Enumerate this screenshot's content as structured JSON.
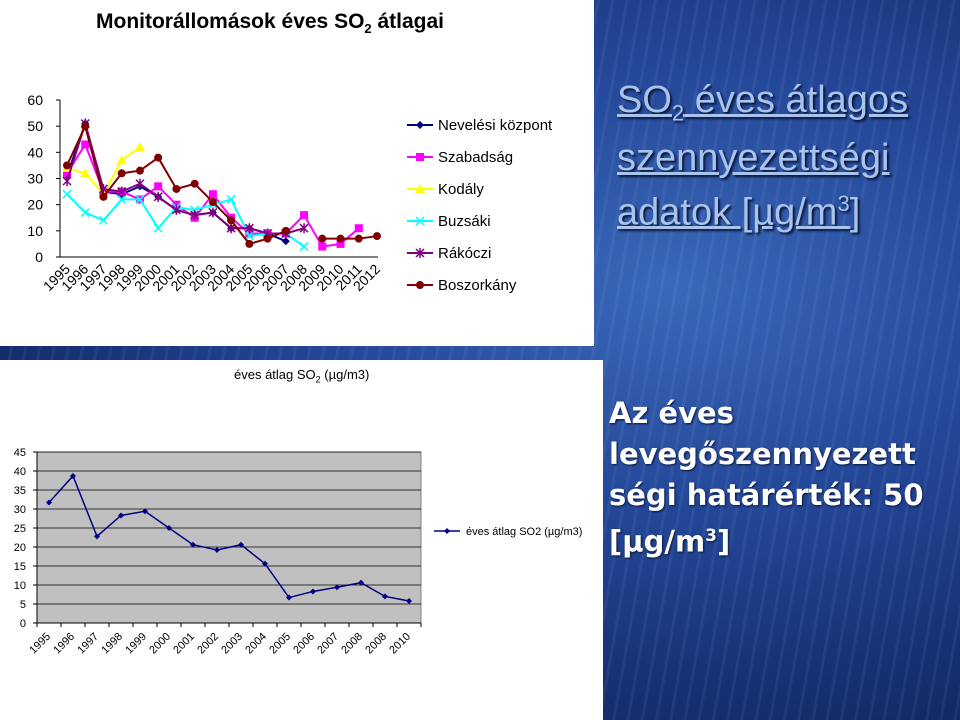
{
  "slide": {
    "heading": {
      "pre": "SO",
      "sub": "2",
      "post": " éves átlagos szennyezettségi adatok [µg/m",
      "sup": "3",
      "end": "]"
    },
    "limit": {
      "pre": "Az éves levegőszennyezett ségi határérték: 50 [µg/m",
      "sup": "3",
      "end": "]"
    }
  },
  "chart_data": [
    {
      "type": "line",
      "title": {
        "pre": "Monitorállomások éves SO",
        "sub": "2",
        "post": " átlagai"
      },
      "xlabel": "",
      "ylabel": "",
      "categories": [
        "1995",
        "1996",
        "1997",
        "1998",
        "1999",
        "2000",
        "2001",
        "2002",
        "2003",
        "2004",
        "2005",
        "2006",
        "2007",
        "2008",
        "2009",
        "2010",
        "2011",
        "2012"
      ],
      "y_ticks": [
        "0",
        "10",
        "20",
        "30",
        "40",
        "50",
        "60"
      ],
      "ylim": [
        0,
        60
      ],
      "legend": "right",
      "series": [
        {
          "name": "Nevelési központ",
          "color": "#000080",
          "marker": "diamond",
          "values": [
            31,
            51,
            25,
            24,
            27,
            23,
            18,
            16,
            17,
            11,
            11,
            9,
            6,
            null,
            null,
            null,
            null,
            null
          ]
        },
        {
          "name": "Szabadság",
          "color": "#ff00ff",
          "marker": "square",
          "values": [
            32,
            43,
            25,
            25,
            22,
            27,
            20,
            15,
            24,
            15,
            9,
            9,
            9,
            16,
            4,
            5,
            11,
            null
          ]
        },
        {
          "name": "Kodály",
          "color": "#ffff00",
          "marker": "triangle",
          "values": [
            34,
            32,
            24,
            37,
            42,
            null,
            null,
            null,
            null,
            null,
            null,
            null,
            null,
            null,
            null,
            null,
            null,
            null
          ]
        },
        {
          "name": "Buzsáki",
          "color": "#00ffff",
          "marker": "x",
          "values": [
            24,
            17,
            14,
            22,
            22,
            11,
            19,
            18,
            20,
            22,
            8,
            9,
            9,
            4,
            null,
            null,
            null,
            null
          ]
        },
        {
          "name": "Rákóczi",
          "color": "#800080",
          "marker": "star",
          "values": [
            29,
            51,
            26,
            25,
            28,
            23,
            18,
            16,
            17,
            11,
            11,
            9,
            9,
            11,
            null,
            null,
            null,
            null
          ]
        },
        {
          "name": "Boszorkány",
          "color": "#800000",
          "marker": "circle",
          "values": [
            35,
            50,
            23,
            32,
            33,
            38,
            26,
            28,
            21,
            14,
            5,
            7,
            10,
            null,
            7,
            7,
            7,
            8
          ]
        }
      ]
    },
    {
      "type": "line",
      "title": {
        "pre": "éves átlag SO",
        "sub": "2",
        "post": " (µg/m3)"
      },
      "xlabel": "",
      "ylabel": "",
      "categories": [
        "1995",
        "1996",
        "1997",
        "1998",
        "1999",
        "2000",
        "2001",
        "2002",
        "2003",
        "2004",
        "2005",
        "2006",
        "2007",
        "2008",
        "2008",
        "2010"
      ],
      "y_ticks": [
        "0",
        "5",
        "10",
        "15",
        "20",
        "25",
        "30",
        "35",
        "40",
        "45"
      ],
      "ylim": [
        0,
        45
      ],
      "grid": true,
      "legend": "right",
      "series": [
        {
          "name": "éves átlag SO2 (µg/m3)",
          "color": "#000080",
          "marker": "diamond",
          "values": [
            31.7,
            38.7,
            22.8,
            28.3,
            29.4,
            25.0,
            20.6,
            19.2,
            20.6,
            15.6,
            6.7,
            8.3,
            9.4,
            10.6,
            7.0,
            5.8
          ]
        }
      ]
    }
  ]
}
